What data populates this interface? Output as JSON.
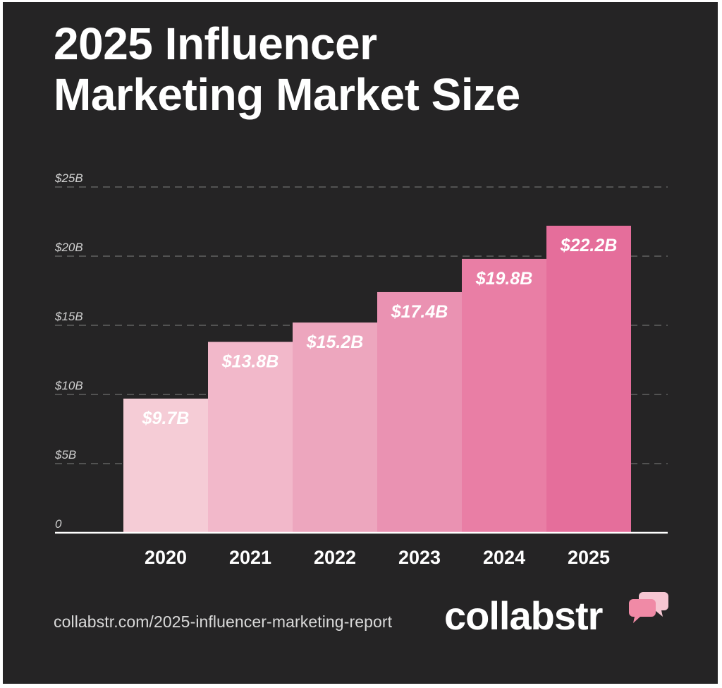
{
  "header": {
    "title_line1": "2025 Influencer",
    "title_line2": "Marketing Market Size"
  },
  "footer": {
    "url": "collabstr.com/2025-influencer-marketing-report",
    "brand": "collabstr",
    "brand_icon": "speech-bubbles-icon"
  },
  "colors": {
    "background": "#252425",
    "grid": "#6e6e6e",
    "axis": "#ffffff",
    "bars": [
      "#f5ccd6",
      "#f2b8ca",
      "#eda6be",
      "#ea92b2",
      "#e97ea5",
      "#e56e9b"
    ],
    "brand_icon_front": "#f08aa6",
    "brand_icon_back": "#f6c6d2"
  },
  "chart_data": {
    "type": "bar",
    "title": "2025 Influencer Marketing Market Size",
    "categories": [
      "2020",
      "2021",
      "2022",
      "2023",
      "2024",
      "2025"
    ],
    "values": [
      9.7,
      13.8,
      15.2,
      17.4,
      19.8,
      22.2
    ],
    "data_labels": [
      "$9.7B",
      "$13.8B",
      "$15.2B",
      "$17.4B",
      "$19.8B",
      "$22.2B"
    ],
    "y_ticks": [
      0,
      5,
      10,
      15,
      20,
      25
    ],
    "y_tick_labels": [
      "0",
      "$5B",
      "$10B",
      "$15B",
      "$20B",
      "$25B"
    ],
    "ylim": [
      0,
      25
    ],
    "xlabel": "",
    "ylabel": "",
    "grid": true,
    "legend": null
  }
}
